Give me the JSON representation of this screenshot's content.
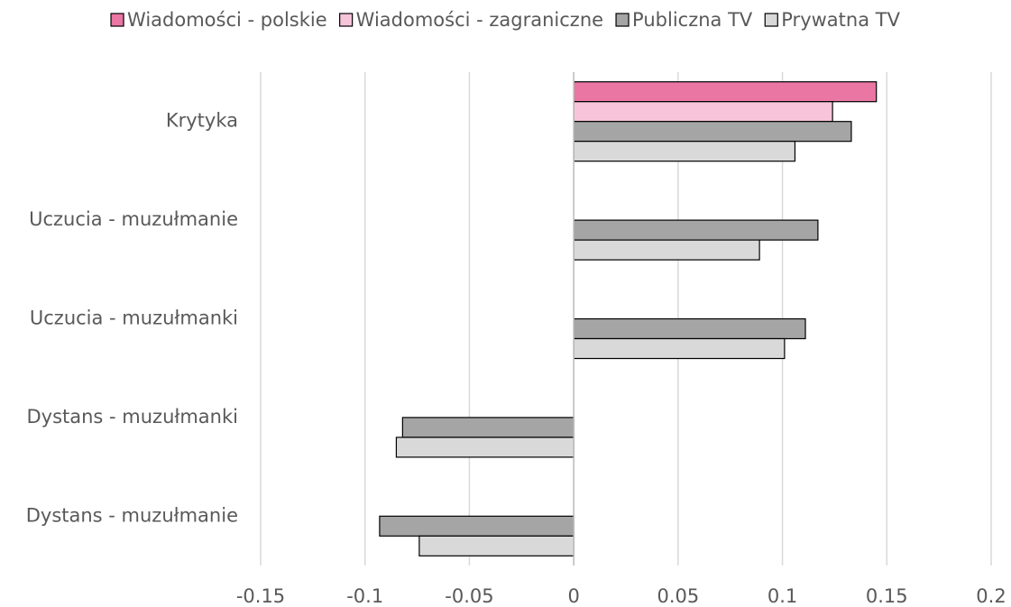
{
  "chart_data": {
    "type": "barh",
    "categories": [
      "Krytyka",
      "Uczucia - muzułmanie",
      "Uczucia - muzułmanki",
      "Dystans - muzułmanki",
      "Dystans - muzułmanie"
    ],
    "series": [
      {
        "name": "Wiadomości - polskie",
        "color": "#ea76a4",
        "values": [
          0.145,
          null,
          null,
          null,
          null
        ]
      },
      {
        "name": "Wiadomości - zagraniczne",
        "color": "#f8c4da",
        "values": [
          0.124,
          null,
          null,
          null,
          null
        ]
      },
      {
        "name": "Publiczna TV",
        "color": "#a5a5a5",
        "values": [
          0.133,
          0.117,
          0.111,
          -0.082,
          -0.093
        ]
      },
      {
        "name": "Prywatna TV",
        "color": "#d9d9d9",
        "values": [
          0.106,
          0.089,
          0.101,
          -0.085,
          -0.074
        ]
      }
    ],
    "xlim": [
      -0.15,
      0.2
    ],
    "xticks": [
      -0.15,
      -0.1,
      -0.05,
      0,
      0.05,
      0.1,
      0.15,
      0.2
    ],
    "grid": true,
    "legend": "top"
  }
}
